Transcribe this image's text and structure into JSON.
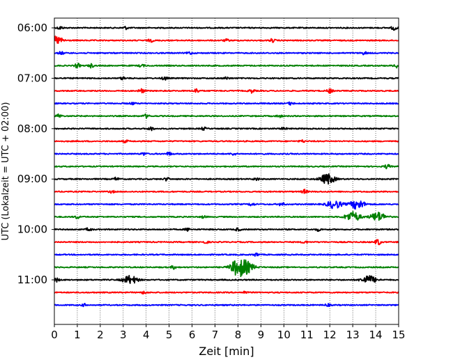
{
  "chart_data": {
    "type": "line",
    "chart_kind": "helicorder",
    "xlabel": "Zeit  [min]",
    "ylabel": "UTC (Lokalzeit = UTC + 02:00)",
    "xlim": [
      0,
      15
    ],
    "x_ticks": [
      "0",
      "1",
      "2",
      "3",
      "4",
      "5",
      "6",
      "7",
      "8",
      "9",
      "10",
      "11",
      "12",
      "13",
      "14",
      "15"
    ],
    "y_tick_labels": [
      "06:00",
      "07:00",
      "08:00",
      "09:00",
      "10:00",
      "11:00"
    ],
    "trace_interval_minutes": 15,
    "grid": "vertical dotted lines at each minute",
    "trace_colors": [
      "#000000",
      "#ff0000",
      "#0000ff",
      "#008000"
    ],
    "traces": [
      {
        "start": "06:00",
        "events": [
          [
            0.25,
            0.35
          ],
          [
            3.1,
            0.3
          ],
          [
            14.8,
            0.5
          ]
        ]
      },
      {
        "start": "06:15",
        "events": [
          [
            0.05,
            0.9
          ],
          [
            4.2,
            0.3
          ],
          [
            7.5,
            0.25
          ],
          [
            9.5,
            0.35
          ]
        ]
      },
      {
        "start": "06:30",
        "events": [
          [
            0.3,
            0.3
          ],
          [
            5.9,
            0.3
          ],
          [
            13.5,
            0.3
          ]
        ]
      },
      {
        "start": "06:45",
        "events": [
          [
            1.0,
            0.5
          ],
          [
            1.6,
            0.4
          ],
          [
            3.8,
            0.3
          ],
          [
            14.9,
            0.45
          ]
        ]
      },
      {
        "start": "07:00",
        "events": [
          [
            3.0,
            0.3
          ],
          [
            4.8,
            0.4
          ],
          [
            7.5,
            0.25
          ]
        ]
      },
      {
        "start": "07:15",
        "events": [
          [
            3.8,
            0.5
          ],
          [
            6.2,
            0.45
          ],
          [
            8.6,
            0.4
          ],
          [
            12.0,
            0.5
          ]
        ]
      },
      {
        "start": "07:30",
        "events": [
          [
            3.4,
            0.25
          ],
          [
            10.3,
            0.3
          ]
        ]
      },
      {
        "start": "07:45",
        "events": [
          [
            0.2,
            0.4
          ],
          [
            4.0,
            0.4
          ],
          [
            9.8,
            0.3
          ]
        ]
      },
      {
        "start": "08:00",
        "events": [
          [
            4.2,
            0.4
          ],
          [
            6.5,
            0.3
          ],
          [
            10.0,
            0.25
          ]
        ]
      },
      {
        "start": "08:15",
        "events": [
          [
            3.1,
            0.25
          ],
          [
            10.8,
            0.25
          ]
        ]
      },
      {
        "start": "08:30",
        "events": [
          [
            3.9,
            0.3
          ],
          [
            5.0,
            0.35
          ],
          [
            7.8,
            0.25
          ]
        ]
      },
      {
        "start": "08:45",
        "events": [
          [
            14.5,
            0.45
          ]
        ]
      },
      {
        "start": "09:00",
        "events": [
          [
            2.7,
            0.35
          ],
          [
            4.9,
            0.35
          ],
          [
            8.8,
            0.3
          ],
          [
            11.9,
            1.1
          ]
        ]
      },
      {
        "start": "09:15",
        "events": [
          [
            2.5,
            0.25
          ],
          [
            10.9,
            0.45
          ]
        ]
      },
      {
        "start": "09:30",
        "events": [
          [
            8.6,
            0.35
          ],
          [
            9.9,
            0.4
          ],
          [
            12.2,
            0.9
          ],
          [
            13.2,
            1.0
          ]
        ]
      },
      {
        "start": "09:45",
        "events": [
          [
            1.0,
            0.35
          ],
          [
            6.5,
            0.25
          ],
          [
            13.0,
            1.1
          ],
          [
            14.1,
            1.0
          ]
        ]
      },
      {
        "start": "10:00",
        "events": [
          [
            1.5,
            0.35
          ],
          [
            5.8,
            0.3
          ],
          [
            8.0,
            0.3
          ],
          [
            11.5,
            0.3
          ]
        ]
      },
      {
        "start": "10:15",
        "events": [
          [
            6.6,
            0.25
          ],
          [
            10.9,
            0.25
          ],
          [
            14.1,
            0.7
          ]
        ]
      },
      {
        "start": "10:30",
        "events": [
          [
            8.8,
            0.35
          ]
        ]
      },
      {
        "start": "10:45",
        "events": [
          [
            5.2,
            0.35
          ],
          [
            8.0,
            1.8
          ],
          [
            8.4,
            1.0
          ]
        ]
      },
      {
        "start": "11:00",
        "events": [
          [
            0.1,
            0.4
          ],
          [
            3.3,
            0.9
          ],
          [
            13.7,
            0.9
          ]
        ]
      },
      {
        "start": "11:15",
        "events": [
          [
            3.9,
            0.25
          ],
          [
            8.3,
            0.25
          ]
        ]
      },
      {
        "start": "11:30",
        "events": [
          [
            1.3,
            0.25
          ],
          [
            11.9,
            0.25
          ]
        ]
      }
    ]
  }
}
